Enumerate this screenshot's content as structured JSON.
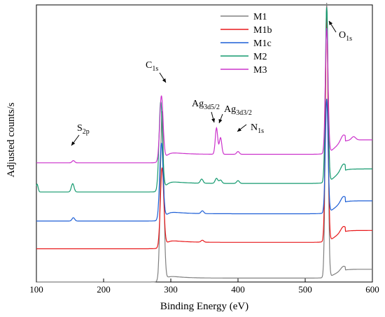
{
  "chart_data": {
    "type": "line",
    "title": "",
    "xlabel": "Binding Energy (eV)",
    "ylabel": "Adjusted counts/s",
    "xlim": [
      100,
      600
    ],
    "ylim": [
      0,
      10
    ],
    "xticks": [
      100,
      200,
      300,
      400,
      500,
      600
    ],
    "y_tick_labels_shown": false,
    "grid": false,
    "legend_position": "top-right",
    "series": [
      {
        "name": "M1",
        "color": "#808080",
        "offset": 0.0,
        "bg_low": 0.0,
        "bg_high": 0.58,
        "peaks": [
          {
            "x": 287,
            "h": 6.1,
            "w": 2.5
          },
          {
            "x": 532,
            "h": 9.9,
            "w": 2.0
          }
        ]
      },
      {
        "name": "M1b",
        "color": "#e8191b",
        "offset": 1.2,
        "bg_low": 0.0,
        "bg_high": 0.78,
        "peaks": [
          {
            "x": 287,
            "h": 2.85,
            "w": 2.5
          },
          {
            "x": 347,
            "h": 0.07,
            "w": 2.0
          },
          {
            "x": 532,
            "h": 8.1,
            "w": 2.0
          }
        ]
      },
      {
        "name": "M1c",
        "color": "#1c5ed6",
        "offset": 2.2,
        "bg_low": 0.0,
        "bg_high": 0.85,
        "peaks": [
          {
            "x": 155,
            "h": 0.12,
            "w": 2.0
          },
          {
            "x": 286,
            "h": 2.75,
            "w": 2.5
          },
          {
            "x": 347,
            "h": 0.1,
            "w": 2.0
          },
          {
            "x": 532,
            "h": 4.1,
            "w": 2.0
          }
        ]
      },
      {
        "name": "M2",
        "color": "#149a6f",
        "offset": 3.25,
        "bg_low": 0.0,
        "bg_high": 0.95,
        "peaks": [
          {
            "x": 101,
            "h": 0.28,
            "w": 1.5
          },
          {
            "x": 154,
            "h": 0.3,
            "w": 2.0
          },
          {
            "x": 285,
            "h": 3.2,
            "w": 2.5
          },
          {
            "x": 346,
            "h": 0.15,
            "w": 2.0
          },
          {
            "x": 368,
            "h": 0.18,
            "w": 2.0
          },
          {
            "x": 374,
            "h": 0.12,
            "w": 2.0
          },
          {
            "x": 400,
            "h": 0.1,
            "w": 2.0
          },
          {
            "x": 532,
            "h": 6.3,
            "w": 2.0
          }
        ]
      },
      {
        "name": "M3",
        "color": "#cc33cc",
        "offset": 4.3,
        "bg_low": 0.0,
        "bg_high": 0.95,
        "peaks": [
          {
            "x": 155,
            "h": 0.08,
            "w": 2.0
          },
          {
            "x": 286,
            "h": 2.35,
            "w": 2.5
          },
          {
            "x": 368,
            "h": 0.95,
            "w": 1.8
          },
          {
            "x": 374,
            "h": 0.6,
            "w": 1.8
          },
          {
            "x": 400,
            "h": 0.1,
            "w": 2.0
          },
          {
            "x": 532,
            "h": 4.5,
            "w": 2.0
          },
          {
            "x": 572,
            "h": 0.12,
            "w": 3.0
          }
        ]
      }
    ],
    "annotations": [
      {
        "label": "C",
        "sub": "1s",
        "x": 287,
        "y": 7.2
      },
      {
        "label": "O",
        "sub": "1s",
        "x": 540,
        "y": 9.5
      },
      {
        "label": "Ag",
        "sub": "3d5/2",
        "x": 365,
        "y": 6.0
      },
      {
        "label": "Ag",
        "sub": "3d3/2",
        "x": 385,
        "y": 5.8
      },
      {
        "label": "N",
        "sub": "1s",
        "x": 415,
        "y": 5.5
      },
      {
        "label": "S",
        "sub": "2p",
        "x": 155,
        "y": 5.5
      }
    ]
  }
}
